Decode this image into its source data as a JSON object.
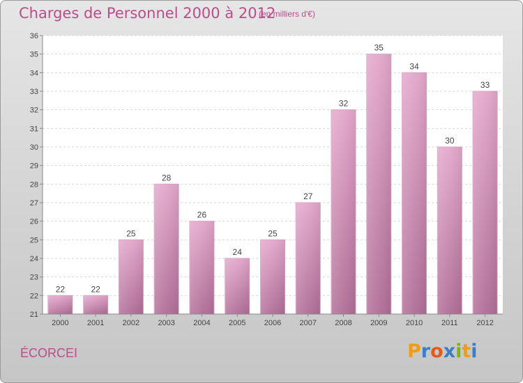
{
  "header": {
    "title": "Charges de Personnel 2000 à 2012",
    "subtitle": "(en milliers d'€)"
  },
  "footer": {
    "commune": "ÉCORCEI",
    "logo_letters": [
      "P",
      "r",
      "o",
      "x",
      "i",
      "t",
      "i"
    ],
    "logo_colors": [
      "#f39c12",
      "#3b7ec6",
      "#e55a1c",
      "#3b7ec6",
      "#7cb518",
      "#f39c12",
      "#3b7ec6"
    ]
  },
  "chart_data": {
    "type": "bar",
    "title": "Charges de Personnel 2000 à 2012",
    "subtitle": "(en milliers d'€)",
    "xlabel": "",
    "ylabel": "",
    "categories": [
      "2000",
      "2001",
      "2002",
      "2003",
      "2004",
      "2005",
      "2006",
      "2007",
      "2008",
      "2009",
      "2010",
      "2011",
      "2012"
    ],
    "values": [
      22,
      22,
      25,
      28,
      26,
      24,
      25,
      27,
      32,
      35,
      34,
      30,
      33
    ],
    "ylim": [
      21,
      36
    ],
    "yticks": [
      "21",
      "22",
      "23",
      "24",
      "25",
      "26",
      "27",
      "28",
      "29",
      "30",
      "31",
      "32",
      "33",
      "34",
      "35",
      "36"
    ],
    "grid": true,
    "legend": "none",
    "bar_color": "#c980ad"
  }
}
